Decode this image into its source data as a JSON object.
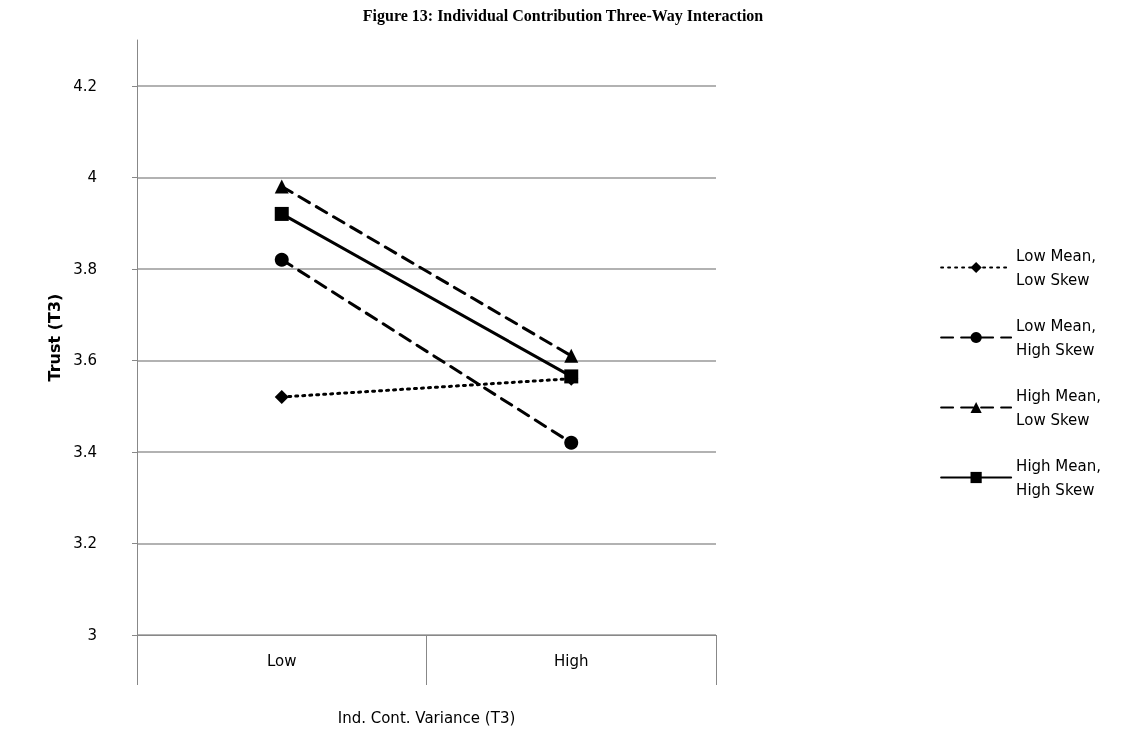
{
  "chart_data": {
    "type": "line",
    "title": "Figure 13: Individual Contribution Three-Way Interaction",
    "xlabel": "Ind. Cont. Variance (T3)",
    "ylabel": "Trust (T3)",
    "categories": [
      "Low",
      "High"
    ],
    "series": [
      {
        "name": "Low Mean,\nLow Skew",
        "color": "#000000",
        "values": [
          3.52,
          3.56
        ],
        "marker": "diamond",
        "line_style": "dotted"
      },
      {
        "name": "Low Mean,\nHigh Skew",
        "color": "#000000",
        "values": [
          3.82,
          3.42
        ],
        "marker": "circle",
        "line_style": "dashed"
      },
      {
        "name": "High Mean,\nLow Skew",
        "color": "#000000",
        "values": [
          3.98,
          3.61
        ],
        "marker": "triangle",
        "line_style": "dashed"
      },
      {
        "name": "High Mean,\nHigh Skew",
        "color": "#000000",
        "values": [
          3.92,
          3.565
        ],
        "marker": "square",
        "line_style": "solid"
      }
    ],
    "ylim": [
      3,
      4.3
    ],
    "yticks": [
      3,
      3.2,
      3.4,
      3.6,
      3.8,
      4,
      4.2
    ],
    "grid": "y",
    "legend": "right"
  }
}
